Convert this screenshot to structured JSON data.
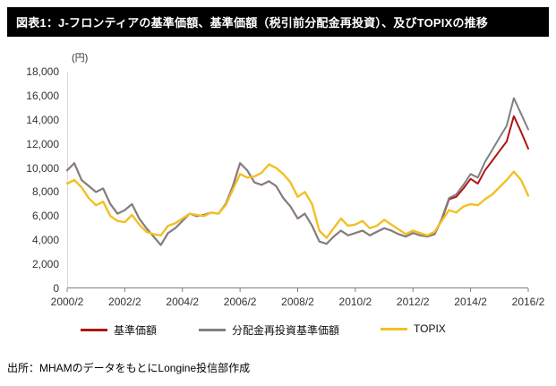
{
  "title_bar": {
    "text": "図表1：J-フロンティアの基準価額、基準価額（税引前分配金再投資）、及びTOPIXの推移"
  },
  "footer": {
    "source": "出所：MHAMのデータをもとにLongine投信部作成"
  },
  "chart_data": {
    "type": "line",
    "unit_label": "(円)",
    "ylim": [
      0,
      18000
    ],
    "y_tick_step": 2000,
    "y_tick_labels": [
      "0",
      "2,000",
      "4,000",
      "6,000",
      "8,000",
      "10,000",
      "12,000",
      "14,000",
      "16,000",
      "18,000"
    ],
    "x_tick_labels": [
      "2000/2",
      "2002/2",
      "2004/2",
      "2006/2",
      "2008/2",
      "2010/2",
      "2012/2",
      "2014/2",
      "2016/2"
    ],
    "grid": false,
    "legend_position": "bottom",
    "x": [
      "2000/2",
      "2000/5",
      "2000/8",
      "2000/11",
      "2001/2",
      "2001/5",
      "2001/8",
      "2001/11",
      "2002/2",
      "2002/5",
      "2002/8",
      "2002/11",
      "2003/2",
      "2003/5",
      "2003/8",
      "2003/11",
      "2004/2",
      "2004/5",
      "2004/8",
      "2004/11",
      "2005/2",
      "2005/5",
      "2005/8",
      "2005/11",
      "2006/2",
      "2006/5",
      "2006/8",
      "2006/11",
      "2007/2",
      "2007/5",
      "2007/8",
      "2007/11",
      "2008/2",
      "2008/5",
      "2008/8",
      "2008/11",
      "2009/2",
      "2009/5",
      "2009/8",
      "2009/11",
      "2010/2",
      "2010/5",
      "2010/8",
      "2010/11",
      "2011/2",
      "2011/5",
      "2011/8",
      "2011/11",
      "2012/2",
      "2012/5",
      "2012/8",
      "2012/11",
      "2013/2",
      "2013/5",
      "2013/8",
      "2013/11",
      "2014/2",
      "2014/5",
      "2014/8",
      "2014/11",
      "2015/2",
      "2015/5",
      "2015/8",
      "2015/11",
      "2016/2"
    ],
    "series": [
      {
        "name": "基準価額",
        "color": "#b01513",
        "values": [
          9800,
          10400,
          9000,
          8500,
          8000,
          8300,
          7000,
          6200,
          6500,
          7000,
          5800,
          5000,
          4300,
          3600,
          4600,
          5000,
          5600,
          6200,
          6000,
          6100,
          6300,
          6200,
          7000,
          8500,
          10400,
          9800,
          8800,
          8600,
          8900,
          8500,
          7500,
          6800,
          5800,
          6200,
          5200,
          3900,
          3700,
          4300,
          4800,
          4400,
          4600,
          4800,
          4400,
          4700,
          5000,
          4800,
          4500,
          4300,
          4600,
          4400,
          4300,
          4500,
          5700,
          7400,
          7600,
          8300,
          9100,
          8700,
          9800,
          10600,
          11400,
          12200,
          14300,
          13000,
          11600
        ]
      },
      {
        "name": "分配金再投資基準価額",
        "color": "#808080",
        "values": [
          9800,
          10400,
          9000,
          8500,
          8000,
          8300,
          7000,
          6200,
          6500,
          7000,
          5800,
          5000,
          4300,
          3600,
          4600,
          5000,
          5600,
          6200,
          6000,
          6100,
          6300,
          6200,
          7000,
          8500,
          10400,
          9800,
          8800,
          8600,
          8900,
          8500,
          7500,
          6800,
          5800,
          6200,
          5200,
          3900,
          3700,
          4300,
          4800,
          4400,
          4600,
          4800,
          4400,
          4700,
          5000,
          4800,
          4500,
          4300,
          4600,
          4400,
          4300,
          4500,
          5800,
          7500,
          7800,
          8600,
          9500,
          9200,
          10500,
          11500,
          12500,
          13500,
          15800,
          14500,
          13200
        ]
      },
      {
        "name": "TOPIX",
        "color": "#f2c023",
        "values": [
          8700,
          9000,
          8400,
          7500,
          6900,
          7200,
          6000,
          5600,
          5500,
          6100,
          5300,
          4700,
          4500,
          4400,
          5200,
          5400,
          5800,
          6200,
          6100,
          6000,
          6300,
          6200,
          6900,
          8200,
          9500,
          9200,
          9300,
          9600,
          10300,
          10000,
          9500,
          8800,
          7600,
          8000,
          7000,
          4800,
          4200,
          5000,
          5800,
          5200,
          5300,
          5600,
          5000,
          5200,
          5700,
          5300,
          4900,
          4500,
          4800,
          4600,
          4400,
          4700,
          5600,
          6500,
          6300,
          6800,
          7000,
          6900,
          7400,
          7800,
          8400,
          9000,
          9700,
          9000,
          7700
        ]
      }
    ]
  }
}
